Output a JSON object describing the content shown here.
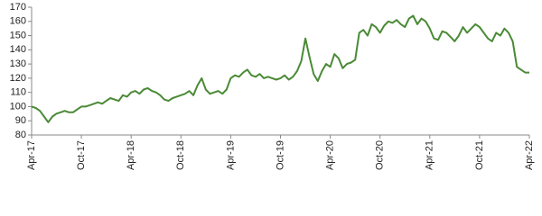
{
  "chart_data": {
    "type": "line",
    "categories": [
      "Apr-17",
      null,
      null,
      null,
      null,
      null,
      null,
      null,
      null,
      null,
      null,
      null,
      "Oct-17",
      null,
      null,
      null,
      null,
      null,
      null,
      null,
      null,
      null,
      null,
      null,
      "Apr-18",
      null,
      null,
      null,
      null,
      null,
      null,
      null,
      null,
      null,
      null,
      null,
      "Oct-18",
      null,
      null,
      null,
      null,
      null,
      null,
      null,
      null,
      null,
      null,
      null,
      "Apr-19",
      null,
      null,
      null,
      null,
      null,
      null,
      null,
      null,
      null,
      null,
      null,
      "Oct-19",
      null,
      null,
      null,
      null,
      null,
      null,
      null,
      null,
      null,
      null,
      null,
      "Apr-20",
      null,
      null,
      null,
      null,
      null,
      null,
      null,
      null,
      null,
      null,
      null,
      "Oct-20",
      null,
      null,
      null,
      null,
      null,
      null,
      null,
      null,
      null,
      null,
      null,
      "Apr-21",
      null,
      null,
      null,
      null,
      null,
      null,
      null,
      null,
      null,
      null,
      null,
      "Oct-21",
      null,
      null,
      null,
      null,
      null,
      null,
      null,
      null,
      null,
      null,
      null,
      "Apr-22"
    ],
    "values": [
      100,
      99,
      97,
      93,
      89,
      93,
      95,
      96,
      97,
      96,
      96,
      98,
      100,
      100,
      101,
      102,
      103,
      102,
      104,
      106,
      105,
      104,
      108,
      107,
      110,
      111,
      109,
      112,
      113,
      111,
      110,
      108,
      105,
      104,
      106,
      107,
      108,
      109,
      111,
      108,
      115,
      120,
      112,
      109,
      110,
      111,
      109,
      112,
      120,
      122,
      121,
      124,
      126,
      122,
      121,
      123,
      120,
      121,
      120,
      119,
      120,
      122,
      119,
      121,
      125,
      132,
      148,
      135,
      123,
      118,
      125,
      130,
      128,
      137,
      134,
      127,
      130,
      131,
      133,
      152,
      154,
      150,
      158,
      156,
      152,
      157,
      160,
      159,
      161,
      158,
      156,
      162,
      164,
      158,
      162,
      160,
      155,
      148,
      147,
      153,
      152,
      149,
      146,
      150,
      156,
      152,
      155,
      158,
      156,
      152,
      148,
      146,
      152,
      150,
      155,
      152,
      146,
      128,
      126,
      124,
      124
    ],
    "color": "#4a8a36",
    "ylim": [
      80,
      170
    ],
    "yticks": [
      80,
      90,
      100,
      110,
      120,
      130,
      140,
      150,
      160,
      170
    ]
  }
}
